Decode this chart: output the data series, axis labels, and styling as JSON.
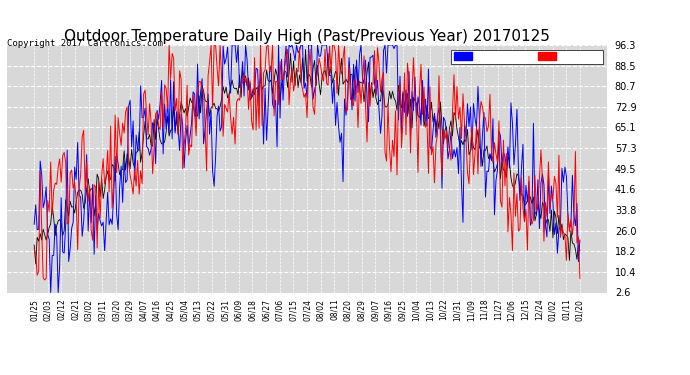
{
  "title": "Outdoor Temperature Daily High (Past/Previous Year) 20170125",
  "copyright": "Copyright 2017 Cartronics.com",
  "yticks": [
    96.3,
    88.5,
    80.7,
    72.9,
    65.1,
    57.3,
    49.5,
    41.6,
    33.8,
    26.0,
    18.2,
    10.4,
    2.6
  ],
  "ylim": [
    2.6,
    96.3
  ],
  "background_color": "#ffffff",
  "plot_bg_color": "#d8d8d8",
  "grid_color": "#ffffff",
  "line_previous_color": "blue",
  "line_past_color": "red",
  "line_base_color": "black",
  "title_fontsize": 11,
  "copyright_fontsize": 6.5,
  "xtick_labels": [
    "01/25",
    "02/03",
    "02/12",
    "02/21",
    "03/02",
    "03/11",
    "03/20",
    "03/29",
    "04/07",
    "04/16",
    "04/25",
    "05/04",
    "05/13",
    "05/22",
    "05/31",
    "06/09",
    "06/18",
    "06/27",
    "07/06",
    "07/15",
    "07/24",
    "08/02",
    "08/11",
    "08/20",
    "08/29",
    "09/07",
    "09/16",
    "09/25",
    "10/04",
    "10/13",
    "10/22",
    "10/31",
    "11/09",
    "11/18",
    "11/27",
    "12/06",
    "12/15",
    "12/24",
    "01/02",
    "01/11",
    "01/20"
  ]
}
